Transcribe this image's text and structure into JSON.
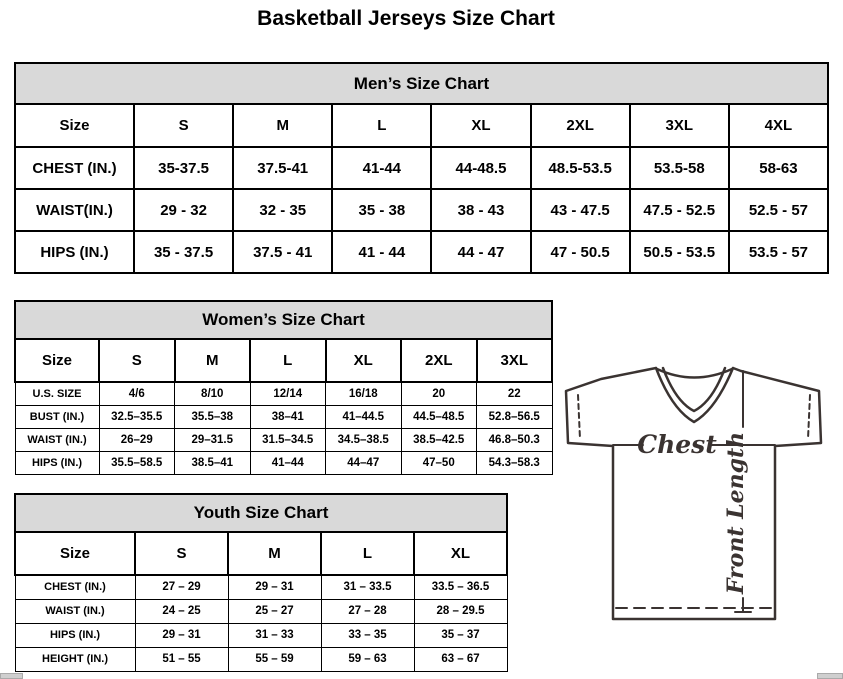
{
  "page": {
    "title": "Basketball Jerseys Size Chart"
  },
  "tables": {
    "men": {
      "title": "Men’s Size Chart",
      "size_label": "Size",
      "columns": [
        "S",
        "M",
        "L",
        "XL",
        "2XL",
        "3XL",
        "4XL"
      ],
      "rows": [
        {
          "label": "CHEST (IN.)",
          "values": [
            "35-37.5",
            "37.5-41",
            "41-44",
            "44-48.5",
            "48.5-53.5",
            "53.5-58",
            "58-63"
          ]
        },
        {
          "label": "WAIST(IN.)",
          "values": [
            "29 - 32",
            "32 - 35",
            "35 - 38",
            "38 - 43",
            "43 - 47.5",
            "47.5 - 52.5",
            "52.5 - 57"
          ]
        },
        {
          "label": "HIPS (IN.)",
          "values": [
            "35 - 37.5",
            "37.5 - 41",
            "41 - 44",
            "44 - 47",
            "47 - 50.5",
            "50.5 - 53.5",
            "53.5 - 57"
          ]
        }
      ]
    },
    "women": {
      "title": "Women’s Size Chart",
      "size_label": "Size",
      "columns": [
        "S",
        "M",
        "L",
        "XL",
        "2XL",
        "3XL"
      ],
      "rows": [
        {
          "label": "U.S. SIZE",
          "values": [
            "4/6",
            "8/10",
            "12/14",
            "16/18",
            "20",
            "22"
          ]
        },
        {
          "label": "BUST (IN.)",
          "values": [
            "32.5–35.5",
            "35.5–38",
            "38–41",
            "41–44.5",
            "44.5–48.5",
            "52.8–56.5"
          ]
        },
        {
          "label": "WAIST (IN.)",
          "values": [
            "26–29",
            "29–31.5",
            "31.5–34.5",
            "34.5–38.5",
            "38.5–42.5",
            "46.8–50.3"
          ]
        },
        {
          "label": "HIPS (IN.)",
          "values": [
            "35.5–58.5",
            "38.5–41",
            "41–44",
            "44–47",
            "47–50",
            "54.3–58.3"
          ]
        }
      ]
    },
    "youth": {
      "title": "Youth Size Chart",
      "size_label": "Size",
      "columns": [
        "S",
        "M",
        "L",
        "XL"
      ],
      "rows": [
        {
          "label": "CHEST (IN.)",
          "values": [
            "27 – 29",
            "29 – 31",
            "31 – 33.5",
            "33.5 – 36.5"
          ]
        },
        {
          "label": "WAIST (IN.)",
          "values": [
            "24 – 25",
            "25 – 27",
            "27 – 28",
            "28 – 29.5"
          ]
        },
        {
          "label": "HIPS (IN.)",
          "values": [
            "29 – 31",
            "31 – 33",
            "33 – 35",
            "35 – 37"
          ]
        },
        {
          "label": "HEIGHT (IN.)",
          "values": [
            "51 – 55",
            "55 – 59",
            "59 – 63",
            "63 – 67"
          ]
        }
      ]
    }
  },
  "diagram": {
    "chest_label": "Chest",
    "front_length_label": "Front Length",
    "outline_color": "#3a3331"
  },
  "colors": {
    "section_header_bg": "#d9d9d9",
    "table_border": "#000000",
    "scrollbar_fragment": "#cfcfcf"
  }
}
